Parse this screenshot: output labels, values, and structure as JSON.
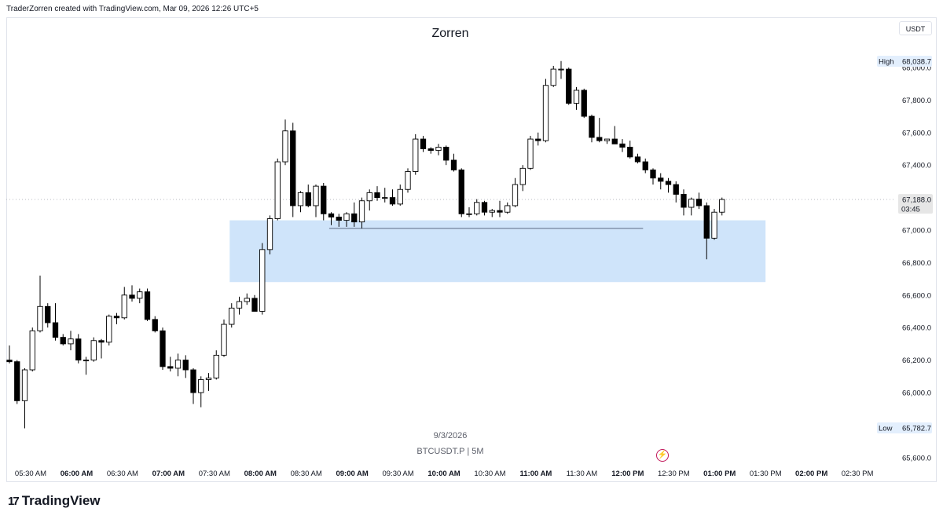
{
  "header": {
    "attribution": "TraderZorren created with TradingView.com, Mar 09, 2026 12:26 UTC+5"
  },
  "currency": "USDT",
  "footer": {
    "date": "9/3/2026",
    "symbol": "BTCUSDT.P | 5M",
    "brand": "TradingView",
    "brand_logo_icon": "tradingview-logo-icon",
    "event_icon": "lightning-bolt-icon"
  },
  "colors": {
    "up_fill": "#ffffff",
    "down_fill": "#000000",
    "wick": "#000000",
    "zone_fill": "#cfe4fa",
    "label_bg": "#e3effd",
    "current_bg": "#e6e6e6"
  },
  "chart_data": {
    "type": "candlestick",
    "title": "Zorren",
    "interval": "5M",
    "y_ticks": [
      "68,000.0",
      "67,800.0",
      "67,600.0",
      "67,400.0",
      "67,200.0",
      "67,000.0",
      "66,800.0",
      "66,600.0",
      "66,400.0",
      "66,200.0",
      "66,000.0",
      "65,800.0",
      "65,600.0"
    ],
    "y_tick_values": [
      68000,
      67800,
      67600,
      67400,
      67200,
      67000,
      66800,
      66600,
      66400,
      66200,
      66000,
      65800,
      65600
    ],
    "x_ticks": [
      {
        "label": "05:30 AM",
        "bold": false
      },
      {
        "label": "06:00 AM",
        "bold": true
      },
      {
        "label": "06:30 AM",
        "bold": false
      },
      {
        "label": "07:00 AM",
        "bold": true
      },
      {
        "label": "07:30 AM",
        "bold": false
      },
      {
        "label": "08:00 AM",
        "bold": true
      },
      {
        "label": "08:30 AM",
        "bold": false
      },
      {
        "label": "09:00 AM",
        "bold": true
      },
      {
        "label": "09:30 AM",
        "bold": false
      },
      {
        "label": "10:00 AM",
        "bold": true
      },
      {
        "label": "10:30 AM",
        "bold": false
      },
      {
        "label": "11:00 AM",
        "bold": true
      },
      {
        "label": "11:30 AM",
        "bold": false
      },
      {
        "label": "12:00 PM",
        "bold": true
      },
      {
        "label": "12:30 PM",
        "bold": false
      },
      {
        "label": "01:00 PM",
        "bold": true
      },
      {
        "label": "01:30 PM",
        "bold": false
      },
      {
        "label": "02:00 PM",
        "bold": true
      },
      {
        "label": "02:30 PM",
        "bold": false
      }
    ],
    "high": {
      "label": "High",
      "value": "68,038.7"
    },
    "low": {
      "label": "Low",
      "value": "65,782.7"
    },
    "current": {
      "price": "67,188.0",
      "countdown": "03:45",
      "value": 67188
    },
    "zone": {
      "start": "07:40 AM",
      "end": "01:30 PM",
      "top": 67060,
      "bottom": 66680
    },
    "level_line": {
      "start": "08:45 AM",
      "end": "12:10 PM",
      "value": 67010
    },
    "candles": [
      {
        "o": 66200,
        "h": 66290,
        "l": 66180,
        "c": 66190
      },
      {
        "o": 66190,
        "h": 66200,
        "l": 65930,
        "c": 65950
      },
      {
        "o": 65950,
        "h": 66150,
        "l": 65780,
        "c": 66140
      },
      {
        "o": 66140,
        "h": 66400,
        "l": 66130,
        "c": 66380
      },
      {
        "o": 66380,
        "h": 66720,
        "l": 66370,
        "c": 66530
      },
      {
        "o": 66530,
        "h": 66550,
        "l": 66400,
        "c": 66430
      },
      {
        "o": 66430,
        "h": 66550,
        "l": 66320,
        "c": 66340
      },
      {
        "o": 66340,
        "h": 66360,
        "l": 66290,
        "c": 66300
      },
      {
        "o": 66300,
        "h": 66380,
        "l": 66260,
        "c": 66330
      },
      {
        "o": 66330,
        "h": 66360,
        "l": 66180,
        "c": 66200
      },
      {
        "o": 66200,
        "h": 66220,
        "l": 66110,
        "c": 66200
      },
      {
        "o": 66200,
        "h": 66340,
        "l": 66190,
        "c": 66320
      },
      {
        "o": 66320,
        "h": 66330,
        "l": 66210,
        "c": 66310
      },
      {
        "o": 66310,
        "h": 66480,
        "l": 66290,
        "c": 66470
      },
      {
        "o": 66470,
        "h": 66490,
        "l": 66420,
        "c": 66460
      },
      {
        "o": 66460,
        "h": 66650,
        "l": 66450,
        "c": 66600
      },
      {
        "o": 66600,
        "h": 66660,
        "l": 66560,
        "c": 66580
      },
      {
        "o": 66580,
        "h": 66640,
        "l": 66550,
        "c": 66620
      },
      {
        "o": 66620,
        "h": 66640,
        "l": 66440,
        "c": 66450
      },
      {
        "o": 66450,
        "h": 66470,
        "l": 66370,
        "c": 66380
      },
      {
        "o": 66380,
        "h": 66400,
        "l": 66140,
        "c": 66160
      },
      {
        "o": 66160,
        "h": 66220,
        "l": 66130,
        "c": 66150
      },
      {
        "o": 66150,
        "h": 66240,
        "l": 66100,
        "c": 66200
      },
      {
        "o": 66200,
        "h": 66230,
        "l": 66090,
        "c": 66140
      },
      {
        "o": 66140,
        "h": 66150,
        "l": 65930,
        "c": 66000
      },
      {
        "o": 66000,
        "h": 66100,
        "l": 65910,
        "c": 66080
      },
      {
        "o": 66080,
        "h": 66120,
        "l": 66010,
        "c": 66090
      },
      {
        "o": 66090,
        "h": 66260,
        "l": 66080,
        "c": 66230
      },
      {
        "o": 66230,
        "h": 66450,
        "l": 66220,
        "c": 66420
      },
      {
        "o": 66420,
        "h": 66550,
        "l": 66400,
        "c": 66520
      },
      {
        "o": 66520,
        "h": 66590,
        "l": 66480,
        "c": 66560
      },
      {
        "o": 66560,
        "h": 66610,
        "l": 66540,
        "c": 66580
      },
      {
        "o": 66580,
        "h": 66600,
        "l": 66500,
        "c": 66500
      },
      {
        "o": 66500,
        "h": 66920,
        "l": 66480,
        "c": 66880
      },
      {
        "o": 66880,
        "h": 67090,
        "l": 66850,
        "c": 67070
      },
      {
        "o": 67070,
        "h": 67440,
        "l": 67060,
        "c": 67420
      },
      {
        "o": 67420,
        "h": 67680,
        "l": 67400,
        "c": 67610
      },
      {
        "o": 67610,
        "h": 67660,
        "l": 67080,
        "c": 67150
      },
      {
        "o": 67150,
        "h": 67240,
        "l": 67110,
        "c": 67230
      },
      {
        "o": 67230,
        "h": 67280,
        "l": 67140,
        "c": 67150
      },
      {
        "o": 67150,
        "h": 67280,
        "l": 67080,
        "c": 67270
      },
      {
        "o": 67270,
        "h": 67290,
        "l": 67060,
        "c": 67100
      },
      {
        "o": 67100,
        "h": 67110,
        "l": 67030,
        "c": 67080
      },
      {
        "o": 67080,
        "h": 67100,
        "l": 67020,
        "c": 67060
      },
      {
        "o": 67060,
        "h": 67110,
        "l": 67020,
        "c": 67100
      },
      {
        "o": 67100,
        "h": 67170,
        "l": 67020,
        "c": 67050
      },
      {
        "o": 67050,
        "h": 67200,
        "l": 67010,
        "c": 67180
      },
      {
        "o": 67180,
        "h": 67250,
        "l": 67120,
        "c": 67230
      },
      {
        "o": 67230,
        "h": 67270,
        "l": 67180,
        "c": 67200
      },
      {
        "o": 67200,
        "h": 67260,
        "l": 67170,
        "c": 67200
      },
      {
        "o": 67200,
        "h": 67250,
        "l": 67150,
        "c": 67160
      },
      {
        "o": 67160,
        "h": 67280,
        "l": 67150,
        "c": 67250
      },
      {
        "o": 67250,
        "h": 67380,
        "l": 67230,
        "c": 67360
      },
      {
        "o": 67360,
        "h": 67590,
        "l": 67340,
        "c": 67560
      },
      {
        "o": 67560,
        "h": 67580,
        "l": 67480,
        "c": 67500
      },
      {
        "o": 67500,
        "h": 67510,
        "l": 67470,
        "c": 67490
      },
      {
        "o": 67490,
        "h": 67530,
        "l": 67460,
        "c": 67510
      },
      {
        "o": 67510,
        "h": 67520,
        "l": 67400,
        "c": 67430
      },
      {
        "o": 67430,
        "h": 67470,
        "l": 67360,
        "c": 67370
      },
      {
        "o": 67370,
        "h": 67380,
        "l": 67080,
        "c": 67100
      },
      {
        "o": 67100,
        "h": 67140,
        "l": 67080,
        "c": 67100
      },
      {
        "o": 67100,
        "h": 67190,
        "l": 67090,
        "c": 67170
      },
      {
        "o": 67170,
        "h": 67180,
        "l": 67090,
        "c": 67110
      },
      {
        "o": 67110,
        "h": 67130,
        "l": 67080,
        "c": 67120
      },
      {
        "o": 67120,
        "h": 67180,
        "l": 67080,
        "c": 67110
      },
      {
        "o": 67110,
        "h": 67170,
        "l": 67100,
        "c": 67150
      },
      {
        "o": 67150,
        "h": 67320,
        "l": 67140,
        "c": 67280
      },
      {
        "o": 67280,
        "h": 67400,
        "l": 67240,
        "c": 67380
      },
      {
        "o": 67380,
        "h": 67580,
        "l": 67370,
        "c": 67560
      },
      {
        "o": 67560,
        "h": 67600,
        "l": 67520,
        "c": 67550
      },
      {
        "o": 67550,
        "h": 67930,
        "l": 67540,
        "c": 67890
      },
      {
        "o": 67890,
        "h": 68010,
        "l": 67880,
        "c": 67990
      },
      {
        "o": 67990,
        "h": 68040,
        "l": 67930,
        "c": 67990
      },
      {
        "o": 67990,
        "h": 68000,
        "l": 67770,
        "c": 67780
      },
      {
        "o": 67780,
        "h": 67880,
        "l": 67740,
        "c": 67860
      },
      {
        "o": 67860,
        "h": 67870,
        "l": 67690,
        "c": 67700
      },
      {
        "o": 67700,
        "h": 67710,
        "l": 67540,
        "c": 67570
      },
      {
        "o": 67570,
        "h": 67690,
        "l": 67540,
        "c": 67550
      },
      {
        "o": 67550,
        "h": 67560,
        "l": 67530,
        "c": 67560
      },
      {
        "o": 67560,
        "h": 67640,
        "l": 67530,
        "c": 67530
      },
      {
        "o": 67530,
        "h": 67560,
        "l": 67480,
        "c": 67510
      },
      {
        "o": 67510,
        "h": 67550,
        "l": 67440,
        "c": 67450
      },
      {
        "o": 67450,
        "h": 67470,
        "l": 67410,
        "c": 67420
      },
      {
        "o": 67420,
        "h": 67440,
        "l": 67350,
        "c": 67370
      },
      {
        "o": 67370,
        "h": 67380,
        "l": 67280,
        "c": 67320
      },
      {
        "o": 67320,
        "h": 67350,
        "l": 67250,
        "c": 67300
      },
      {
        "o": 67300,
        "h": 67320,
        "l": 67230,
        "c": 67280
      },
      {
        "o": 67280,
        "h": 67300,
        "l": 67170,
        "c": 67220
      },
      {
        "o": 67220,
        "h": 67250,
        "l": 67090,
        "c": 67140
      },
      {
        "o": 67140,
        "h": 67200,
        "l": 67090,
        "c": 67190
      },
      {
        "o": 67190,
        "h": 67230,
        "l": 67130,
        "c": 67150
      },
      {
        "o": 67150,
        "h": 67170,
        "l": 66820,
        "c": 66950
      },
      {
        "o": 66950,
        "h": 67130,
        "l": 66940,
        "c": 67110
      },
      {
        "o": 67110,
        "h": 67200,
        "l": 67090,
        "c": 67188
      }
    ]
  }
}
